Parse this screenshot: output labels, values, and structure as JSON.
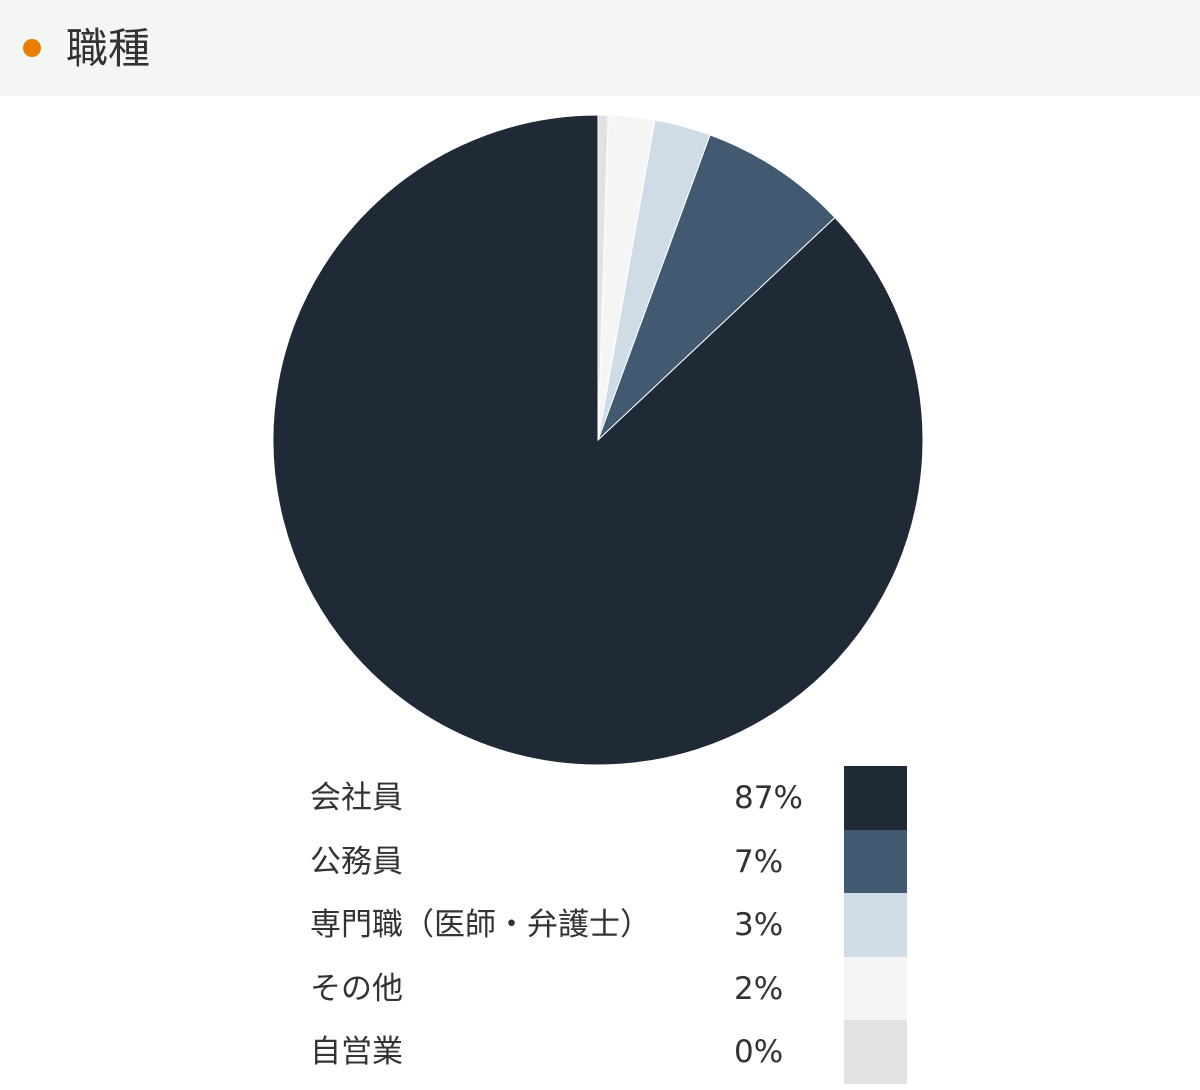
{
  "header": {
    "title": "職種",
    "dot_color": "#e67e00"
  },
  "chart_data": {
    "type": "pie",
    "start": "top",
    "direction": "counterclockwise",
    "categories": [
      "会社員",
      "公務員",
      "専門職（医師・弁護士）",
      "その他",
      "自営業"
    ],
    "values": [
      87.0,
      7.4,
      2.8,
      2.3,
      0.5
    ],
    "labels": [
      "87%",
      "7%",
      "3%",
      "2%",
      "0%"
    ],
    "colors": [
      "#1f2a36",
      "#415a72",
      "#cfdbe5",
      "#f5f5f5",
      "#e2e2e2"
    ],
    "legend": "bottom"
  }
}
